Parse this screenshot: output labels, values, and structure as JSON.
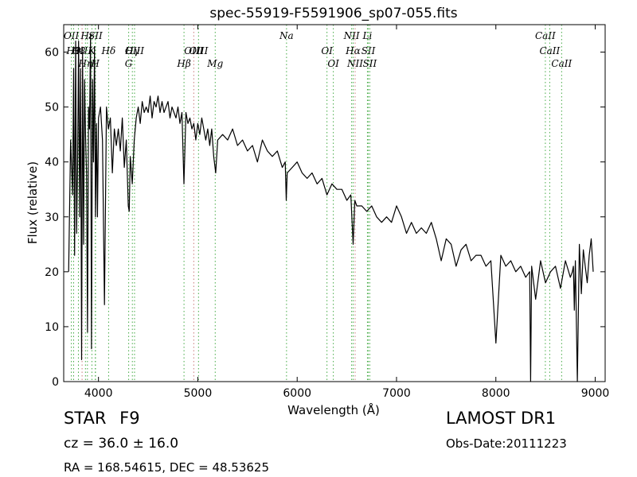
{
  "chart_data": {
    "type": "line",
    "title": "spec-55919-F5591906_sp07-055.fits",
    "xlabel": "Wavelength (Å)",
    "ylabel": "Flux (relative)",
    "xlim": [
      3650,
      9100
    ],
    "ylim": [
      0,
      65
    ],
    "xticks": [
      4000,
      5000,
      6000,
      7000,
      8000,
      9000
    ],
    "yticks": [
      0,
      10,
      20,
      30,
      40,
      50,
      60
    ],
    "grid": false,
    "series": [
      {
        "color": "#000000",
        "x": [
          3700,
          3720,
          3740,
          3750,
          3760,
          3770,
          3780,
          3790,
          3800,
          3810,
          3820,
          3830,
          3840,
          3850,
          3860,
          3870,
          3880,
          3890,
          3900,
          3910,
          3920,
          3930,
          3940,
          3950,
          3960,
          3970,
          3980,
          3990,
          4000,
          4020,
          4040,
          4060,
          4080,
          4100,
          4120,
          4140,
          4160,
          4180,
          4200,
          4220,
          4240,
          4260,
          4280,
          4300,
          4310,
          4320,
          4340,
          4360,
          4380,
          4400,
          4420,
          4440,
          4460,
          4480,
          4500,
          4520,
          4540,
          4560,
          4580,
          4600,
          4620,
          4640,
          4660,
          4680,
          4700,
          4720,
          4740,
          4760,
          4780,
          4800,
          4820,
          4840,
          4860,
          4880,
          4900,
          4920,
          4940,
          4960,
          4980,
          5000,
          5020,
          5040,
          5060,
          5080,
          5100,
          5120,
          5140,
          5160,
          5180,
          5200,
          5250,
          5300,
          5350,
          5400,
          5450,
          5500,
          5550,
          5600,
          5650,
          5700,
          5750,
          5800,
          5850,
          5880,
          5890,
          5900,
          5950,
          6000,
          6050,
          6100,
          6150,
          6200,
          6250,
          6300,
          6350,
          6400,
          6450,
          6500,
          6540,
          6563,
          6580,
          6600,
          6650,
          6700,
          6750,
          6800,
          6850,
          6900,
          6950,
          7000,
          7050,
          7100,
          7150,
          7200,
          7250,
          7300,
          7350,
          7400,
          7450,
          7500,
          7550,
          7600,
          7650,
          7700,
          7750,
          7800,
          7850,
          7900,
          7950,
          8000,
          8050,
          8100,
          8150,
          8200,
          8250,
          8300,
          8340,
          8350,
          8360,
          8400,
          8450,
          8500,
          8550,
          8600,
          8650,
          8700,
          8750,
          8770,
          8780,
          8790,
          8800,
          8820,
          8840,
          8860,
          8880,
          8900,
          8920,
          8940,
          8960,
          8980
        ],
        "values": [
          20,
          44,
          34,
          57,
          23,
          62,
          27,
          40,
          62,
          30,
          57,
          4,
          60,
          25,
          55,
          45,
          38,
          9,
          50,
          46,
          63,
          6,
          55,
          40,
          61,
          30,
          47,
          30,
          48,
          50,
          44,
          14,
          50,
          46,
          48,
          38,
          46,
          43,
          46,
          42,
          48,
          39,
          44,
          32,
          31,
          41,
          36,
          44,
          48,
          50,
          47,
          51,
          49,
          50,
          49,
          52,
          48,
          51,
          50,
          52,
          49,
          51,
          49,
          50,
          51,
          48,
          50,
          49,
          48,
          50,
          47,
          49,
          36,
          49,
          47,
          48,
          46,
          47,
          44,
          47,
          45,
          48,
          46,
          44,
          46,
          43,
          46,
          41,
          38,
          44,
          45,
          44,
          46,
          43,
          44,
          42,
          43,
          40,
          44,
          42,
          41,
          42,
          39,
          40,
          33,
          38,
          39,
          40,
          38,
          37,
          38,
          36,
          37,
          34,
          36,
          35,
          35,
          33,
          34,
          25,
          33,
          32,
          32,
          31,
          32,
          30,
          29,
          30,
          29,
          32,
          30,
          27,
          29,
          27,
          28,
          27,
          29,
          26,
          22,
          26,
          25,
          21,
          24,
          25,
          22,
          23,
          23,
          21,
          22,
          7,
          23,
          21,
          22,
          20,
          21,
          19,
          20,
          0,
          21,
          15,
          22,
          18,
          20,
          21,
          17,
          22,
          19,
          20,
          21,
          13,
          22,
          0,
          25,
          16,
          24,
          21,
          18,
          23,
          26,
          20
        ]
      }
    ],
    "line_markers": [
      {
        "wl": 3727,
        "row": 0,
        "label": "OII",
        "pos": "top"
      },
      {
        "wl": 3750,
        "row": 1,
        "label": "H9",
        "pos": "top"
      },
      {
        "wl": 3798,
        "row": 1,
        "label": "H8",
        "pos": "top"
      },
      {
        "wl": 3835,
        "row": 0,
        "label": "OIII",
        "pos": "bottom"
      },
      {
        "wl": 3869,
        "row": 2,
        "label": "Hη",
        "pos": "top"
      },
      {
        "wl": 3889,
        "row": 0,
        "label": "Hε",
        "pos": "top"
      },
      {
        "wl": 3934,
        "row": 1,
        "label": "K",
        "pos": "top"
      },
      {
        "wl": 3968,
        "row": 2,
        "label": "H",
        "pos": "top"
      },
      {
        "wl": 3970,
        "row": 0,
        "label": "SII",
        "pos": "top"
      },
      {
        "wl": 4102,
        "row": 1,
        "label": "Hδ",
        "pos": "top"
      },
      {
        "wl": 4304,
        "row": 2,
        "label": "G",
        "pos": "bottom"
      },
      {
        "wl": 4341,
        "row": 0,
        "label": "Hγ",
        "pos": "bottom"
      },
      {
        "wl": 4363,
        "row": 1,
        "label": "OIII",
        "pos": "top"
      },
      {
        "wl": 4861,
        "row": 1,
        "label": "Hβ",
        "pos": "bottom"
      },
      {
        "wl": 4959,
        "row": 0,
        "label": "OIII",
        "pos": "bottom"
      },
      {
        "wl": 5007,
        "row": 1,
        "label": "OIII",
        "pos": "top"
      },
      {
        "wl": 5175,
        "row": 1,
        "label": "Mg",
        "pos": "bottom"
      },
      {
        "wl": 5893,
        "row": 0,
        "label": "Na",
        "pos": "top"
      },
      {
        "wl": 6300,
        "row": 1,
        "label": "OI",
        "pos": "top"
      },
      {
        "wl": 6364,
        "row": 2,
        "label": "OI",
        "pos": "bottom"
      },
      {
        "wl": 6548,
        "row": 0,
        "label": "NII",
        "pos": "top"
      },
      {
        "wl": 6563,
        "row": 1,
        "label": "Hα",
        "pos": "top"
      },
      {
        "wl": 6583,
        "row": 2,
        "label": "NII",
        "pos": "bottom"
      },
      {
        "wl": 6707,
        "row": 0,
        "label": "Li",
        "pos": "top"
      },
      {
        "wl": 6716,
        "row": 1,
        "label": "SII",
        "pos": "top"
      },
      {
        "wl": 6731,
        "row": 2,
        "label": "SII",
        "pos": "bottom"
      },
      {
        "wl": 8498,
        "row": 0,
        "label": "CaII",
        "pos": "top"
      },
      {
        "wl": 8542,
        "row": 1,
        "label": "CaII",
        "pos": "top"
      },
      {
        "wl": 8662,
        "row": 2,
        "label": "CaII",
        "pos": "bottom"
      }
    ]
  },
  "info": {
    "class": "STAR",
    "subclass": "F9",
    "redshift": "cz = 36.0 ± 16.0",
    "survey": "LAMOST DR1",
    "obs_date": "Obs-Date:20111223",
    "coords": "RA = 168.54615, DEC = 48.53625"
  }
}
